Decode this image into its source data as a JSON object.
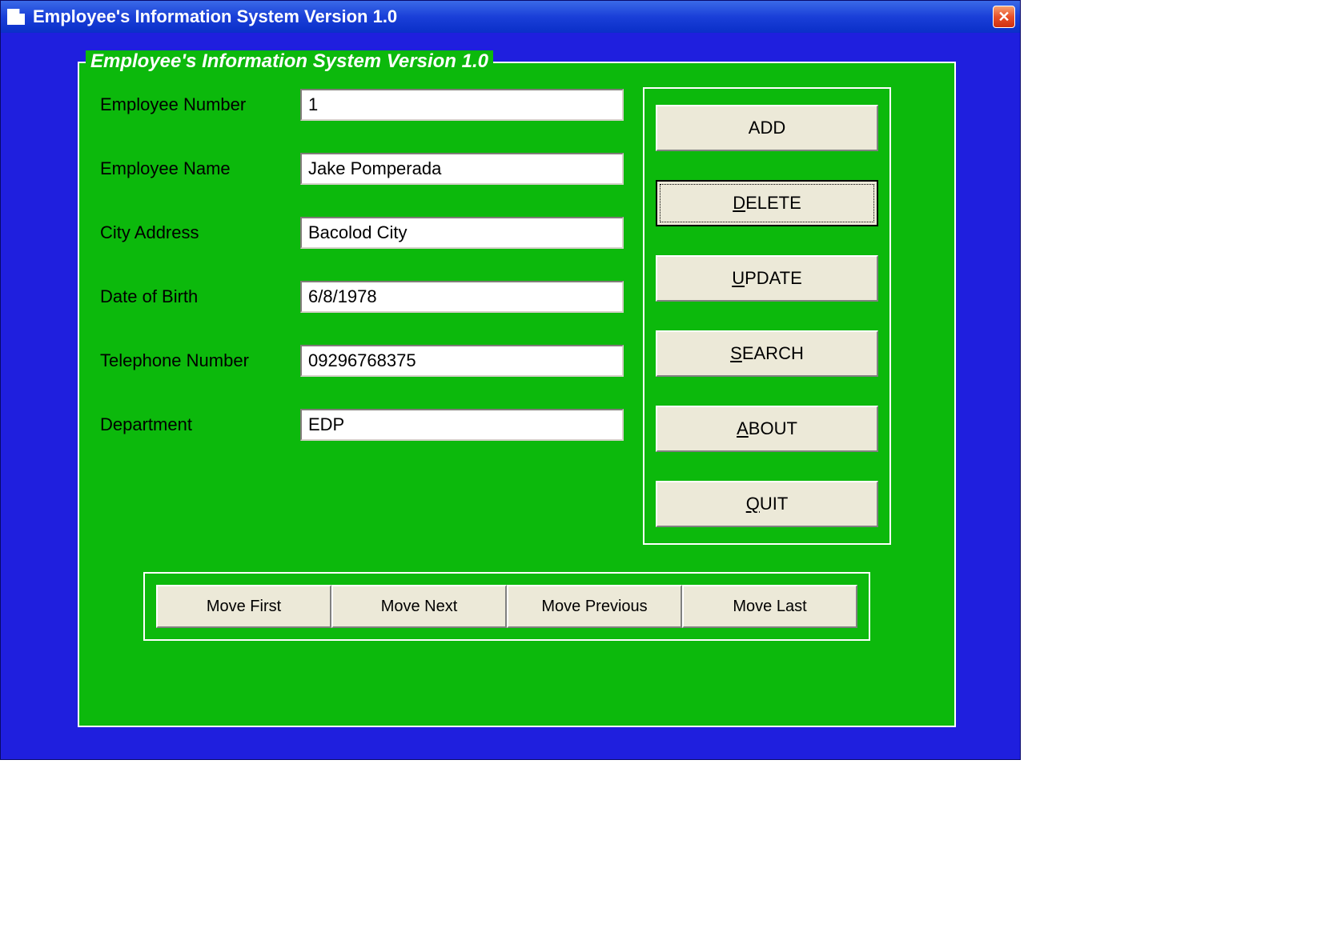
{
  "window": {
    "title": "Employee's Information System Version 1.0",
    "group_caption": "Employee's Information System Version 1.0"
  },
  "colors": {
    "titlebar_gradient_top": "#3a6ae8",
    "titlebar_gradient_bottom": "#0a2fc8",
    "client_bg": "#1f1fde",
    "group_bg": "#0cb90c",
    "group_border": "#ffffff",
    "button_face": "#ece9d8",
    "text": "#000000",
    "title_text": "#ffffff",
    "close_bg": "#e8502a"
  },
  "fields": {
    "employee_number": {
      "label": "Employee Number",
      "value": "1"
    },
    "employee_name": {
      "label": "Employee Name",
      "value": "Jake Pomperada"
    },
    "city_address": {
      "label": "City Address",
      "value": "Bacolod City"
    },
    "date_of_birth": {
      "label": "Date of Birth",
      "value": "6/8/1978"
    },
    "telephone": {
      "label": "Telephone Number",
      "value": "09296768375"
    },
    "department": {
      "label": "Department",
      "value": "EDP"
    }
  },
  "actions": {
    "add": {
      "label": "ADD"
    },
    "delete": {
      "prefix": "",
      "accel": "D",
      "suffix": "ELETE"
    },
    "update": {
      "prefix": "",
      "accel": "U",
      "suffix": "PDATE"
    },
    "search": {
      "prefix": "",
      "accel": "S",
      "suffix": "EARCH"
    },
    "about": {
      "prefix": "",
      "accel": "A",
      "suffix": "BOUT"
    },
    "quit": {
      "prefix": "",
      "accel": "Q",
      "suffix": "UIT"
    }
  },
  "nav": {
    "first": {
      "label": "Move First"
    },
    "next": {
      "label": "Move Next"
    },
    "previous": {
      "label": "Move Previous"
    },
    "last": {
      "label": "Move Last"
    }
  }
}
